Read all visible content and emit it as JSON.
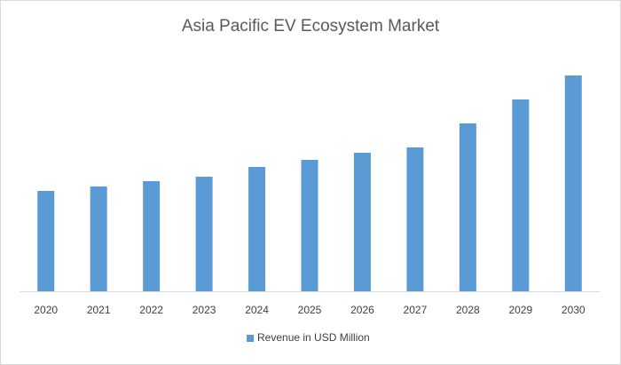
{
  "chart_data": {
    "type": "bar",
    "title": "Asia Pacific EV Ecosystem Market",
    "categories": [
      "2020",
      "2021",
      "2022",
      "2023",
      "2024",
      "2025",
      "2026",
      "2027",
      "2028",
      "2029",
      "2030"
    ],
    "series": [
      {
        "name": "Revenue in USD Million",
        "color": "#5b9bd5",
        "values": [
          113,
          118,
          124,
          129,
          140,
          148,
          156,
          162,
          189,
          216,
          243
        ]
      }
    ],
    "legend": "bottom"
  }
}
